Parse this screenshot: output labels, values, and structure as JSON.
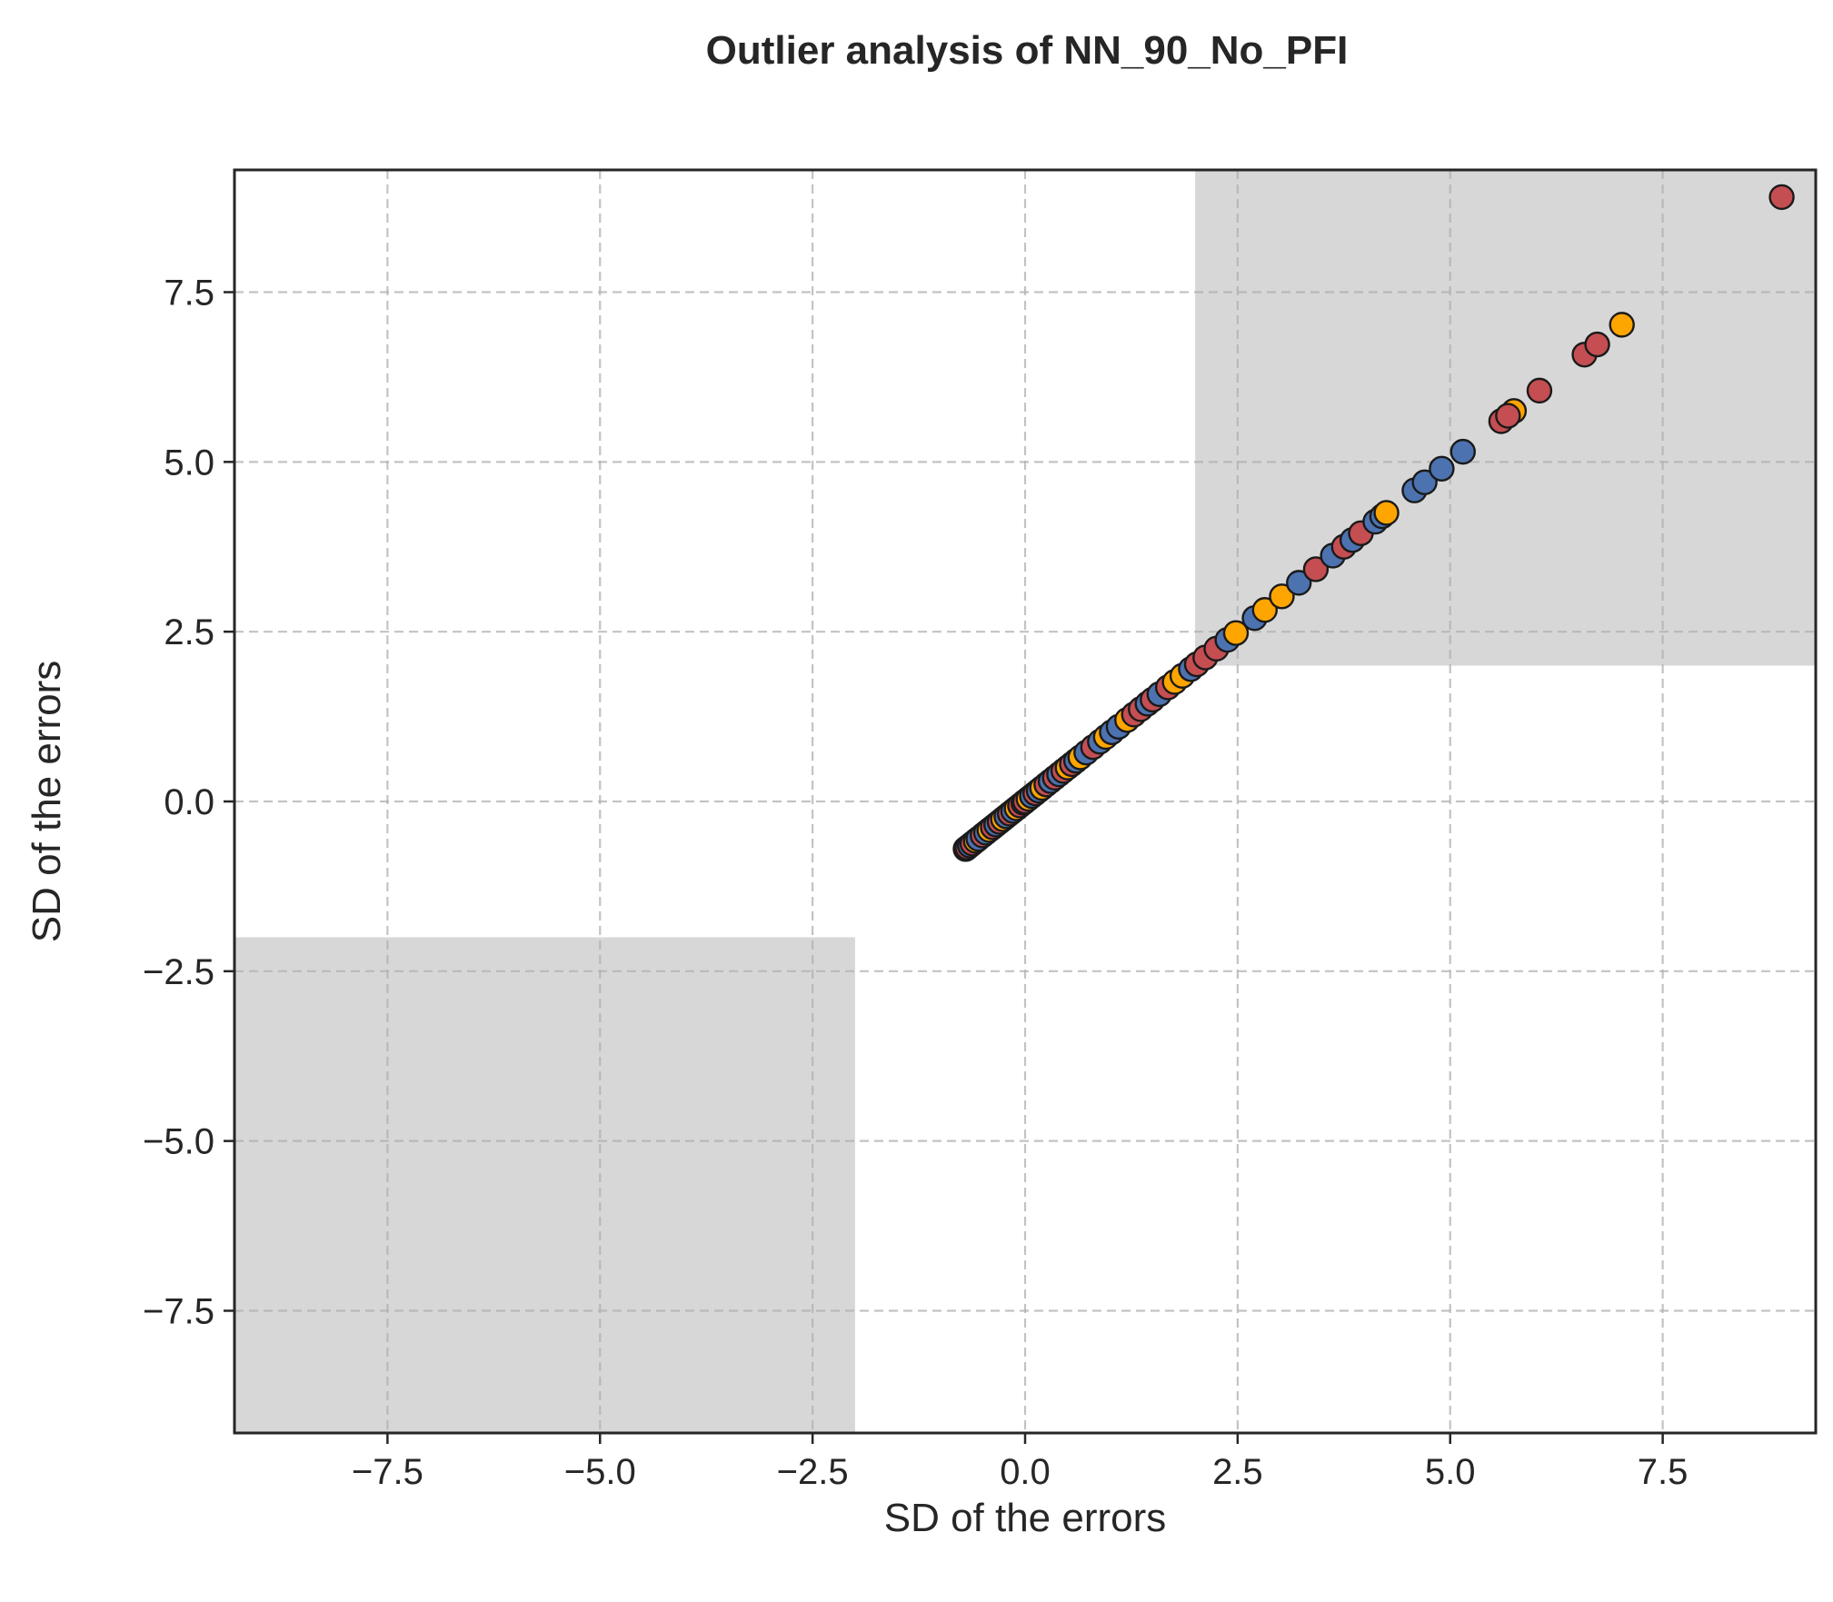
{
  "chart_data": {
    "type": "scatter",
    "title": "Outlier analysis of NN_90_No_PFI",
    "xlabel": "SD of the errors",
    "ylabel": "SD of the errors",
    "xlim": [
      -9.3,
      9.3
    ],
    "ylim": [
      -9.3,
      9.3
    ],
    "xticks": [
      -7.5,
      -5.0,
      -2.5,
      0.0,
      2.5,
      5.0,
      7.5
    ],
    "yticks": [
      -7.5,
      -5.0,
      -2.5,
      0.0,
      2.5,
      5.0,
      7.5
    ],
    "xtick_labels": [
      "−7.5",
      "−5.0",
      "−2.5",
      "0.0",
      "2.5",
      "5.0",
      "7.5"
    ],
    "ytick_labels": [
      "−7.5",
      "−5.0",
      "−2.5",
      "0.0",
      "2.5",
      "5.0",
      "7.5"
    ],
    "grid": true,
    "shaded_regions": [
      {
        "x": [
          2.0,
          9.3
        ],
        "y": [
          2.0,
          9.3
        ],
        "color": "#bfbfbf"
      },
      {
        "x": [
          -9.3,
          -2.0
        ],
        "y": [
          -9.3,
          -2.0
        ],
        "color": "#bfbfbf"
      }
    ],
    "colors": {
      "blue": "#4c72b0",
      "orange": "#ffa500",
      "red": "#c44e52",
      "edge": "#1a1a1a"
    },
    "points": [
      {
        "x": -0.7,
        "y": -0.7,
        "c": "blue"
      },
      {
        "x": -0.69,
        "y": -0.69,
        "c": "orange"
      },
      {
        "x": -0.68,
        "y": -0.68,
        "c": "red"
      },
      {
        "x": -0.65,
        "y": -0.65,
        "c": "blue"
      },
      {
        "x": -0.62,
        "y": -0.62,
        "c": "red"
      },
      {
        "x": -0.58,
        "y": -0.58,
        "c": "orange"
      },
      {
        "x": -0.55,
        "y": -0.55,
        "c": "blue"
      },
      {
        "x": -0.5,
        "y": -0.5,
        "c": "red"
      },
      {
        "x": -0.46,
        "y": -0.46,
        "c": "blue"
      },
      {
        "x": -0.42,
        "y": -0.42,
        "c": "orange"
      },
      {
        "x": -0.38,
        "y": -0.38,
        "c": "red"
      },
      {
        "x": -0.34,
        "y": -0.34,
        "c": "blue"
      },
      {
        "x": -0.3,
        "y": -0.3,
        "c": "red"
      },
      {
        "x": -0.26,
        "y": -0.26,
        "c": "orange"
      },
      {
        "x": -0.22,
        "y": -0.22,
        "c": "blue"
      },
      {
        "x": -0.18,
        "y": -0.18,
        "c": "red"
      },
      {
        "x": -0.14,
        "y": -0.14,
        "c": "blue"
      },
      {
        "x": -0.1,
        "y": -0.1,
        "c": "orange"
      },
      {
        "x": -0.06,
        "y": -0.06,
        "c": "red"
      },
      {
        "x": -0.02,
        "y": -0.02,
        "c": "blue"
      },
      {
        "x": 0.0,
        "y": 0.0,
        "c": "red"
      },
      {
        "x": 0.04,
        "y": 0.04,
        "c": "orange"
      },
      {
        "x": 0.08,
        "y": 0.08,
        "c": "blue"
      },
      {
        "x": 0.12,
        "y": 0.12,
        "c": "red"
      },
      {
        "x": 0.16,
        "y": 0.16,
        "c": "blue"
      },
      {
        "x": 0.2,
        "y": 0.2,
        "c": "orange"
      },
      {
        "x": 0.25,
        "y": 0.25,
        "c": "red"
      },
      {
        "x": 0.3,
        "y": 0.3,
        "c": "blue"
      },
      {
        "x": 0.35,
        "y": 0.35,
        "c": "red"
      },
      {
        "x": 0.4,
        "y": 0.4,
        "c": "blue"
      },
      {
        "x": 0.45,
        "y": 0.45,
        "c": "red"
      },
      {
        "x": 0.5,
        "y": 0.5,
        "c": "orange"
      },
      {
        "x": 0.55,
        "y": 0.55,
        "c": "red"
      },
      {
        "x": 0.6,
        "y": 0.6,
        "c": "blue"
      },
      {
        "x": 0.65,
        "y": 0.65,
        "c": "orange"
      },
      {
        "x": 0.72,
        "y": 0.72,
        "c": "blue"
      },
      {
        "x": 0.8,
        "y": 0.8,
        "c": "red"
      },
      {
        "x": 0.88,
        "y": 0.88,
        "c": "blue"
      },
      {
        "x": 0.95,
        "y": 0.95,
        "c": "orange"
      },
      {
        "x": 1.02,
        "y": 1.02,
        "c": "blue"
      },
      {
        "x": 1.1,
        "y": 1.1,
        "c": "blue"
      },
      {
        "x": 1.2,
        "y": 1.2,
        "c": "orange"
      },
      {
        "x": 1.28,
        "y": 1.28,
        "c": "red"
      },
      {
        "x": 1.36,
        "y": 1.36,
        "c": "red"
      },
      {
        "x": 1.44,
        "y": 1.44,
        "c": "blue"
      },
      {
        "x": 1.5,
        "y": 1.5,
        "c": "red"
      },
      {
        "x": 1.58,
        "y": 1.58,
        "c": "blue"
      },
      {
        "x": 1.68,
        "y": 1.68,
        "c": "red"
      },
      {
        "x": 1.76,
        "y": 1.76,
        "c": "orange"
      },
      {
        "x": 1.85,
        "y": 1.85,
        "c": "orange"
      },
      {
        "x": 1.95,
        "y": 1.95,
        "c": "blue"
      },
      {
        "x": 2.02,
        "y": 2.02,
        "c": "red"
      },
      {
        "x": 2.12,
        "y": 2.12,
        "c": "red"
      },
      {
        "x": 2.25,
        "y": 2.25,
        "c": "red"
      },
      {
        "x": 2.38,
        "y": 2.38,
        "c": "blue"
      },
      {
        "x": 2.48,
        "y": 2.48,
        "c": "orange"
      },
      {
        "x": 2.7,
        "y": 2.7,
        "c": "blue"
      },
      {
        "x": 2.82,
        "y": 2.82,
        "c": "orange"
      },
      {
        "x": 3.02,
        "y": 3.02,
        "c": "orange"
      },
      {
        "x": 3.22,
        "y": 3.22,
        "c": "blue"
      },
      {
        "x": 3.42,
        "y": 3.42,
        "c": "red"
      },
      {
        "x": 3.62,
        "y": 3.62,
        "c": "blue"
      },
      {
        "x": 3.75,
        "y": 3.75,
        "c": "red"
      },
      {
        "x": 3.85,
        "y": 3.85,
        "c": "blue"
      },
      {
        "x": 3.95,
        "y": 3.95,
        "c": "red"
      },
      {
        "x": 4.12,
        "y": 4.12,
        "c": "blue"
      },
      {
        "x": 4.2,
        "y": 4.2,
        "c": "blue"
      },
      {
        "x": 4.25,
        "y": 4.25,
        "c": "orange"
      },
      {
        "x": 4.58,
        "y": 4.58,
        "c": "blue"
      },
      {
        "x": 4.7,
        "y": 4.7,
        "c": "blue"
      },
      {
        "x": 4.9,
        "y": 4.9,
        "c": "blue"
      },
      {
        "x": 5.15,
        "y": 5.15,
        "c": "blue"
      },
      {
        "x": 5.6,
        "y": 5.6,
        "c": "red"
      },
      {
        "x": 5.75,
        "y": 5.75,
        "c": "orange"
      },
      {
        "x": 5.68,
        "y": 5.68,
        "c": "red"
      },
      {
        "x": 6.05,
        "y": 6.05,
        "c": "red"
      },
      {
        "x": 6.58,
        "y": 6.58,
        "c": "red"
      },
      {
        "x": 6.73,
        "y": 6.73,
        "c": "red"
      },
      {
        "x": 7.02,
        "y": 7.02,
        "c": "orange"
      },
      {
        "x": 8.9,
        "y": 8.9,
        "c": "red"
      }
    ]
  }
}
